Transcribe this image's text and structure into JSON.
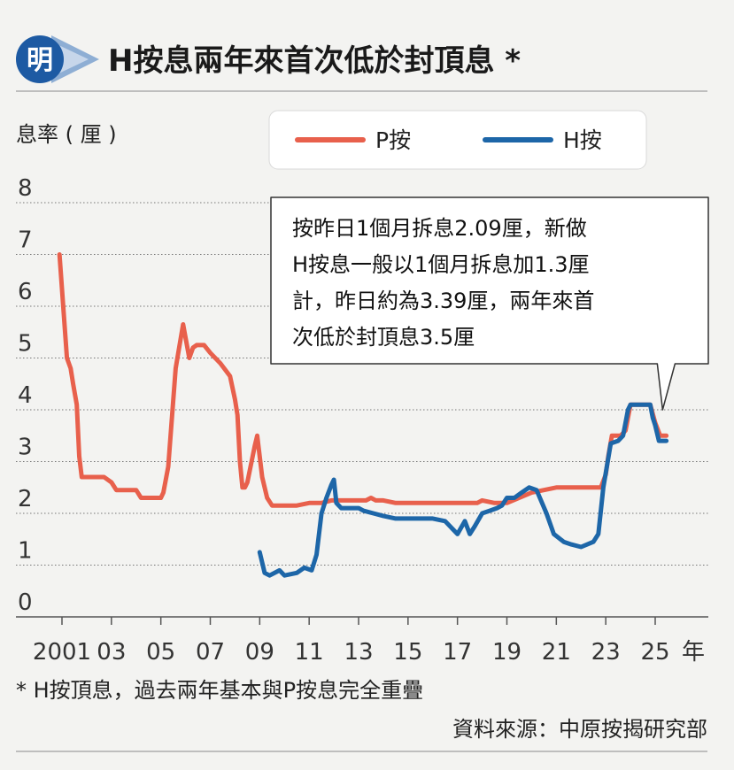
{
  "header": {
    "logo": "明",
    "title": "H按息兩年來首次低於封頂息 *"
  },
  "chart_data": {
    "type": "line",
    "ylabel": "息率 ( 厘 )",
    "xlabel": "年",
    "ylim": [
      0,
      8
    ],
    "yticks": [
      "0",
      "1",
      "2",
      "3",
      "4",
      "5",
      "6",
      "7",
      "8"
    ],
    "xlim": [
      2000.4,
      2026.2
    ],
    "xticks": [
      {
        "x": 2001,
        "label": "2001"
      },
      {
        "x": 2003,
        "label": "03"
      },
      {
        "x": 2005,
        "label": "05"
      },
      {
        "x": 2007,
        "label": "07"
      },
      {
        "x": 2009,
        "label": "09"
      },
      {
        "x": 2011,
        "label": "11"
      },
      {
        "x": 2013,
        "label": "13"
      },
      {
        "x": 2015,
        "label": "15"
      },
      {
        "x": 2017,
        "label": "17"
      },
      {
        "x": 2019,
        "label": "19"
      },
      {
        "x": 2021,
        "label": "21"
      },
      {
        "x": 2023,
        "label": "23"
      },
      {
        "x": 2025,
        "label": "25"
      }
    ],
    "grid": "horizontal dotted",
    "legend_position": "top-right",
    "series": [
      {
        "name": "P按",
        "color": "#e8604c",
        "x": [
          2000.9,
          2001.2,
          2001.35,
          2001.45,
          2001.6,
          2001.7,
          2001.8,
          2002.3,
          2002.7,
          2003.0,
          2003.2,
          2003.7,
          2004.0,
          2004.2,
          2004.4,
          2005.0,
          2005.1,
          2005.3,
          2005.6,
          2005.9,
          2006.15,
          2006.3,
          2006.45,
          2006.6,
          2006.75,
          2007.0,
          2007.2,
          2007.4,
          2007.8,
          2008.0,
          2008.1,
          2008.2,
          2008.3,
          2008.4,
          2008.5,
          2008.8,
          2008.9,
          2009.0,
          2009.1,
          2009.3,
          2009.5,
          2009.6,
          2010.0,
          2010.5,
          2011.0,
          2011.5,
          2011.9,
          2012.0,
          2012.5,
          2013.0,
          2013.3,
          2013.5,
          2013.7,
          2014.0,
          2014.5,
          2015.0,
          2016.0,
          2017.0,
          2017.8,
          2018.0,
          2018.5,
          2019.0,
          2020.0,
          2021.0,
          2022.0,
          2022.7,
          2022.8,
          2023.0,
          2023.1,
          2023.25,
          2023.5,
          2023.6,
          2023.8,
          2024.0,
          2024.3,
          2024.6,
          2024.8,
          2025.0,
          2025.2,
          2025.45
        ],
        "y": [
          7.0,
          5.0,
          4.8,
          4.5,
          4.1,
          3.1,
          2.7,
          2.7,
          2.7,
          2.6,
          2.45,
          2.45,
          2.45,
          2.3,
          2.3,
          2.3,
          2.4,
          2.9,
          4.8,
          5.65,
          5.0,
          5.2,
          5.25,
          5.25,
          5.25,
          5.1,
          5.0,
          4.9,
          4.65,
          4.2,
          3.9,
          3.0,
          2.5,
          2.5,
          2.6,
          3.3,
          3.5,
          3.1,
          2.7,
          2.3,
          2.15,
          2.15,
          2.15,
          2.15,
          2.2,
          2.2,
          2.25,
          2.25,
          2.25,
          2.25,
          2.25,
          2.3,
          2.25,
          2.25,
          2.2,
          2.2,
          2.2,
          2.2,
          2.2,
          2.25,
          2.2,
          2.2,
          2.4,
          2.5,
          2.5,
          2.5,
          2.5,
          2.75,
          3.1,
          3.5,
          3.5,
          3.5,
          3.6,
          4.1,
          4.1,
          4.1,
          4.1,
          3.75,
          3.5,
          3.5
        ]
      },
      {
        "name": "H按",
        "color": "#1d66a8",
        "x": [
          2009.0,
          2009.2,
          2009.4,
          2009.8,
          2010.0,
          2010.5,
          2010.8,
          2011.1,
          2011.3,
          2011.5,
          2011.7,
          2011.9,
          2012.0,
          2012.1,
          2012.3,
          2012.5,
          2013.0,
          2013.2,
          2013.6,
          2014.0,
          2014.5,
          2015.0,
          2015.5,
          2016.0,
          2016.5,
          2017.0,
          2017.3,
          2017.5,
          2017.7,
          2018.0,
          2018.3,
          2018.6,
          2018.8,
          2019.0,
          2019.3,
          2019.6,
          2019.9,
          2020.2,
          2020.6,
          2020.9,
          2021.3,
          2021.6,
          2022.0,
          2022.5,
          2022.7,
          2022.9,
          2023.2,
          2023.5,
          2023.7,
          2023.9,
          2024.0,
          2024.3,
          2024.6,
          2024.8,
          2024.9,
          2025.0,
          2025.15,
          2025.45
        ],
        "y": [
          1.25,
          0.85,
          0.8,
          0.9,
          0.8,
          0.85,
          0.95,
          0.9,
          1.2,
          2.0,
          2.3,
          2.55,
          2.65,
          2.2,
          2.1,
          2.1,
          2.1,
          2.05,
          2.0,
          1.95,
          1.9,
          1.9,
          1.9,
          1.9,
          1.85,
          1.6,
          1.85,
          1.6,
          1.75,
          2.0,
          2.05,
          2.1,
          2.15,
          2.3,
          2.3,
          2.4,
          2.5,
          2.45,
          2.0,
          1.6,
          1.45,
          1.4,
          1.35,
          1.45,
          1.6,
          2.5,
          3.35,
          3.4,
          3.5,
          4.0,
          4.1,
          4.1,
          4.1,
          4.1,
          3.85,
          3.7,
          3.4,
          3.4
        ]
      }
    ],
    "annotation": {
      "lines": [
        "按昨日1個月拆息2.09厘，新做",
        "H按息一般以1個月拆息加1.3厘",
        "計，昨日約為3.39厘，兩年來首",
        "次低於封頂息3.5厘"
      ],
      "pointer": {
        "x": 2025.3,
        "y": 4.0
      }
    }
  },
  "footer": {
    "note": "* H按頂息，過去兩年基本與P按息完全重疊",
    "source": "資料來源：中原按揭研究部"
  }
}
